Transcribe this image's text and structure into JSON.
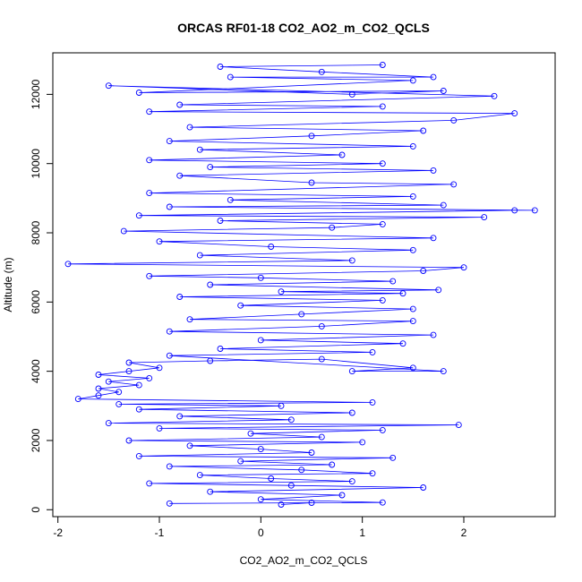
{
  "chart_data": {
    "type": "scatter",
    "title": "ORCAS RF01-18 CO2_AO2_m_CO2_QCLS",
    "xlabel": "CO2_AO2_m_CO2_QCLS",
    "ylabel": "Altitude (m)",
    "xlim": [
      -2.05,
      2.9
    ],
    "ylim": [
      -200,
      13200
    ],
    "x_ticks": [
      -2,
      -1,
      0,
      1,
      2
    ],
    "y_ticks": [
      0,
      2000,
      4000,
      6000,
      8000,
      10000,
      12000
    ],
    "x_tick_labels": [
      "-2",
      "-1",
      "0",
      "1",
      "2"
    ],
    "y_tick_labels": [
      "0",
      "2000",
      "4000",
      "6000",
      "8000",
      "10000",
      "12000"
    ],
    "grid": false,
    "legend": "none",
    "point_style": "open-circle-connected",
    "color": "#0000FF",
    "series": [
      {
        "points": [
          [
            0.2,
            150
          ],
          [
            0.5,
            200
          ],
          [
            -0.9,
            180
          ],
          [
            1.2,
            210
          ],
          [
            0.0,
            300
          ],
          [
            0.8,
            420
          ],
          [
            -0.5,
            520
          ],
          [
            1.6,
            640
          ],
          [
            0.3,
            700
          ],
          [
            -1.1,
            760
          ],
          [
            0.9,
            820
          ],
          [
            0.1,
            900
          ],
          [
            -0.6,
            1000
          ],
          [
            1.1,
            1050
          ],
          [
            0.4,
            1150
          ],
          [
            -0.9,
            1250
          ],
          [
            0.7,
            1300
          ],
          [
            -0.2,
            1400
          ],
          [
            1.3,
            1500
          ],
          [
            -1.2,
            1550
          ],
          [
            0.5,
            1650
          ],
          [
            0.0,
            1750
          ],
          [
            -0.7,
            1850
          ],
          [
            1.0,
            1950
          ],
          [
            -1.3,
            2000
          ],
          [
            0.6,
            2100
          ],
          [
            -0.1,
            2200
          ],
          [
            1.2,
            2300
          ],
          [
            -1.0,
            2350
          ],
          [
            1.95,
            2450
          ],
          [
            -1.5,
            2500
          ],
          [
            0.3,
            2600
          ],
          [
            -0.8,
            2700
          ],
          [
            0.9,
            2800
          ],
          [
            -1.2,
            2900
          ],
          [
            0.2,
            3000
          ],
          [
            -1.4,
            3050
          ],
          [
            1.1,
            3100
          ],
          [
            -1.8,
            3200
          ],
          [
            -1.6,
            3300
          ],
          [
            -1.4,
            3400
          ],
          [
            -1.6,
            3500
          ],
          [
            -1.2,
            3600
          ],
          [
            -1.5,
            3700
          ],
          [
            -1.1,
            3800
          ],
          [
            -1.6,
            3900
          ],
          [
            -1.3,
            4000
          ],
          [
            -1.0,
            4100
          ],
          [
            -1.3,
            4250
          ],
          [
            -0.5,
            4300
          ],
          [
            0.6,
            4350
          ],
          [
            1.5,
            4100
          ],
          [
            0.9,
            4000
          ],
          [
            1.8,
            4000
          ],
          [
            -0.9,
            4450
          ],
          [
            1.1,
            4550
          ],
          [
            -0.4,
            4650
          ],
          [
            1.4,
            4800
          ],
          [
            0.0,
            4900
          ],
          [
            1.7,
            5050
          ],
          [
            -0.9,
            5150
          ],
          [
            0.6,
            5300
          ],
          [
            1.5,
            5450
          ],
          [
            -0.7,
            5500
          ],
          [
            0.4,
            5650
          ],
          [
            1.5,
            5800
          ],
          [
            -0.2,
            5900
          ],
          [
            1.2,
            6050
          ],
          [
            -0.8,
            6150
          ],
          [
            1.4,
            6250
          ],
          [
            0.2,
            6300
          ],
          [
            1.75,
            6350
          ],
          [
            -0.5,
            6500
          ],
          [
            1.3,
            6600
          ],
          [
            0.0,
            6700
          ],
          [
            -1.1,
            6750
          ],
          [
            1.6,
            6900
          ],
          [
            2.0,
            7000
          ],
          [
            -1.9,
            7100
          ],
          [
            0.9,
            7200
          ],
          [
            -0.6,
            7350
          ],
          [
            1.5,
            7500
          ],
          [
            0.1,
            7600
          ],
          [
            -1.0,
            7750
          ],
          [
            1.7,
            7850
          ],
          [
            -1.35,
            8050
          ],
          [
            0.7,
            8150
          ],
          [
            1.2,
            8250
          ],
          [
            -0.4,
            8350
          ],
          [
            2.2,
            8450
          ],
          [
            -1.2,
            8500
          ],
          [
            2.5,
            8650
          ],
          [
            2.7,
            8650
          ],
          [
            -0.9,
            8750
          ],
          [
            1.8,
            8800
          ],
          [
            -0.3,
            8950
          ],
          [
            1.5,
            9050
          ],
          [
            -1.1,
            9150
          ],
          [
            1.9,
            9400
          ],
          [
            0.5,
            9450
          ],
          [
            -0.8,
            9650
          ],
          [
            1.7,
            9800
          ],
          [
            -0.5,
            9900
          ],
          [
            1.2,
            10000
          ],
          [
            -1.1,
            10100
          ],
          [
            0.8,
            10250
          ],
          [
            -0.6,
            10400
          ],
          [
            1.5,
            10500
          ],
          [
            -0.9,
            10650
          ],
          [
            0.5,
            10800
          ],
          [
            1.6,
            10950
          ],
          [
            -0.7,
            11050
          ],
          [
            1.9,
            11250
          ],
          [
            2.5,
            11450
          ],
          [
            -1.1,
            11500
          ],
          [
            1.2,
            11650
          ],
          [
            -0.8,
            11700
          ],
          [
            2.3,
            11950
          ],
          [
            -1.5,
            12250
          ],
          [
            0.9,
            12000
          ],
          [
            1.8,
            12100
          ],
          [
            -1.2,
            12050
          ],
          [
            1.5,
            12400
          ],
          [
            -0.3,
            12500
          ],
          [
            1.7,
            12500
          ],
          [
            0.6,
            12650
          ],
          [
            -0.4,
            12800
          ],
          [
            1.2,
            12850
          ]
        ]
      }
    ]
  }
}
